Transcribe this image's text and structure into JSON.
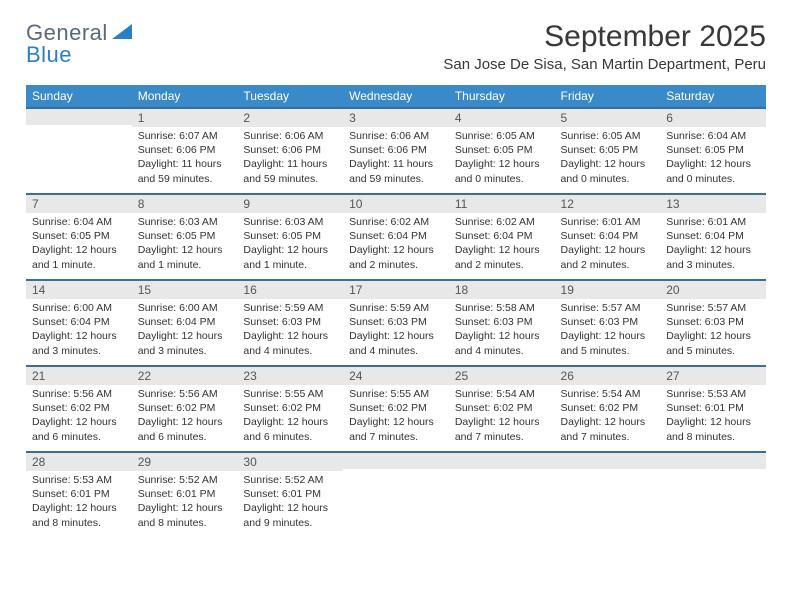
{
  "logo": {
    "general": "General",
    "blue": "Blue",
    "tri_color": "#2b7fc3",
    "text_color_general": "#5a6a78",
    "text_color_blue": "#2b7fc3"
  },
  "title": "September 2025",
  "location": "San Jose De Sisa, San Martin Department, Peru",
  "colors": {
    "header_bg": "#3a89c9",
    "header_text": "#ffffff",
    "daynum_bg": "#e8e8e8",
    "daynum_border": "#3a6f9c",
    "body_text": "#333333"
  },
  "weekdays": [
    "Sunday",
    "Monday",
    "Tuesday",
    "Wednesday",
    "Thursday",
    "Friday",
    "Saturday"
  ],
  "start_offset": 1,
  "days": [
    {
      "n": 1,
      "sr": "6:07 AM",
      "ss": "6:06 PM",
      "dl": "11 hours and 59 minutes."
    },
    {
      "n": 2,
      "sr": "6:06 AM",
      "ss": "6:06 PM",
      "dl": "11 hours and 59 minutes."
    },
    {
      "n": 3,
      "sr": "6:06 AM",
      "ss": "6:06 PM",
      "dl": "11 hours and 59 minutes."
    },
    {
      "n": 4,
      "sr": "6:05 AM",
      "ss": "6:05 PM",
      "dl": "12 hours and 0 minutes."
    },
    {
      "n": 5,
      "sr": "6:05 AM",
      "ss": "6:05 PM",
      "dl": "12 hours and 0 minutes."
    },
    {
      "n": 6,
      "sr": "6:04 AM",
      "ss": "6:05 PM",
      "dl": "12 hours and 0 minutes."
    },
    {
      "n": 7,
      "sr": "6:04 AM",
      "ss": "6:05 PM",
      "dl": "12 hours and 1 minute."
    },
    {
      "n": 8,
      "sr": "6:03 AM",
      "ss": "6:05 PM",
      "dl": "12 hours and 1 minute."
    },
    {
      "n": 9,
      "sr": "6:03 AM",
      "ss": "6:05 PM",
      "dl": "12 hours and 1 minute."
    },
    {
      "n": 10,
      "sr": "6:02 AM",
      "ss": "6:04 PM",
      "dl": "12 hours and 2 minutes."
    },
    {
      "n": 11,
      "sr": "6:02 AM",
      "ss": "6:04 PM",
      "dl": "12 hours and 2 minutes."
    },
    {
      "n": 12,
      "sr": "6:01 AM",
      "ss": "6:04 PM",
      "dl": "12 hours and 2 minutes."
    },
    {
      "n": 13,
      "sr": "6:01 AM",
      "ss": "6:04 PM",
      "dl": "12 hours and 3 minutes."
    },
    {
      "n": 14,
      "sr": "6:00 AM",
      "ss": "6:04 PM",
      "dl": "12 hours and 3 minutes."
    },
    {
      "n": 15,
      "sr": "6:00 AM",
      "ss": "6:04 PM",
      "dl": "12 hours and 3 minutes."
    },
    {
      "n": 16,
      "sr": "5:59 AM",
      "ss": "6:03 PM",
      "dl": "12 hours and 4 minutes."
    },
    {
      "n": 17,
      "sr": "5:59 AM",
      "ss": "6:03 PM",
      "dl": "12 hours and 4 minutes."
    },
    {
      "n": 18,
      "sr": "5:58 AM",
      "ss": "6:03 PM",
      "dl": "12 hours and 4 minutes."
    },
    {
      "n": 19,
      "sr": "5:57 AM",
      "ss": "6:03 PM",
      "dl": "12 hours and 5 minutes."
    },
    {
      "n": 20,
      "sr": "5:57 AM",
      "ss": "6:03 PM",
      "dl": "12 hours and 5 minutes."
    },
    {
      "n": 21,
      "sr": "5:56 AM",
      "ss": "6:02 PM",
      "dl": "12 hours and 6 minutes."
    },
    {
      "n": 22,
      "sr": "5:56 AM",
      "ss": "6:02 PM",
      "dl": "12 hours and 6 minutes."
    },
    {
      "n": 23,
      "sr": "5:55 AM",
      "ss": "6:02 PM",
      "dl": "12 hours and 6 minutes."
    },
    {
      "n": 24,
      "sr": "5:55 AM",
      "ss": "6:02 PM",
      "dl": "12 hours and 7 minutes."
    },
    {
      "n": 25,
      "sr": "5:54 AM",
      "ss": "6:02 PM",
      "dl": "12 hours and 7 minutes."
    },
    {
      "n": 26,
      "sr": "5:54 AM",
      "ss": "6:02 PM",
      "dl": "12 hours and 7 minutes."
    },
    {
      "n": 27,
      "sr": "5:53 AM",
      "ss": "6:01 PM",
      "dl": "12 hours and 8 minutes."
    },
    {
      "n": 28,
      "sr": "5:53 AM",
      "ss": "6:01 PM",
      "dl": "12 hours and 8 minutes."
    },
    {
      "n": 29,
      "sr": "5:52 AM",
      "ss": "6:01 PM",
      "dl": "12 hours and 8 minutes."
    },
    {
      "n": 30,
      "sr": "5:52 AM",
      "ss": "6:01 PM",
      "dl": "12 hours and 9 minutes."
    }
  ],
  "labels": {
    "sunrise": "Sunrise:",
    "sunset": "Sunset:",
    "daylight": "Daylight:"
  }
}
